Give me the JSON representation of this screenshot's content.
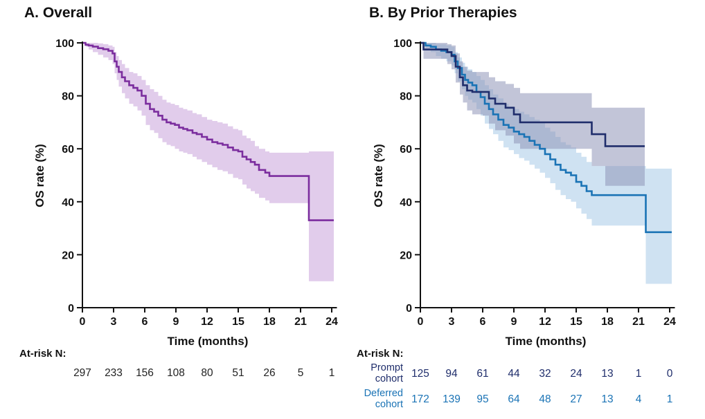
{
  "chart_data": [
    {
      "type": "line",
      "panel_title": "A. Overall",
      "xlabel": "Time (months)",
      "ylabel": "OS rate (%)",
      "xlim": [
        0,
        24.5
      ],
      "ylim": [
        0,
        100
      ],
      "xticks": [
        0,
        3,
        6,
        9,
        12,
        15,
        18,
        21,
        24
      ],
      "yticks": [
        0,
        20,
        40,
        60,
        80,
        100
      ],
      "series": [
        {
          "name": "Overall",
          "color": "#7b2d9e",
          "band_color": "#c9a3db",
          "x": [
            0,
            0.3,
            0.6,
            1.0,
            1.5,
            2.0,
            2.5,
            2.9,
            3.1,
            3.3,
            3.5,
            3.8,
            4.1,
            4.5,
            4.9,
            5.3,
            5.7,
            6.1,
            6.5,
            6.9,
            7.3,
            7.7,
            8.1,
            8.5,
            8.9,
            9.3,
            9.7,
            10.1,
            10.6,
            11.0,
            11.5,
            12.0,
            12.5,
            13.0,
            13.5,
            14.0,
            14.5,
            15.0,
            15.4,
            15.8,
            16.2,
            16.6,
            17.0,
            17.6,
            18.0,
            21.8,
            24.2
          ],
          "y": [
            100,
            99.3,
            99.0,
            98.6,
            98.0,
            97.6,
            97.0,
            96.0,
            93.0,
            91.0,
            89.0,
            87.0,
            85.5,
            84.0,
            83.0,
            82.0,
            80.0,
            77.0,
            75.0,
            74.0,
            72.5,
            71.0,
            70.0,
            69.5,
            69.0,
            68.0,
            67.5,
            67.0,
            66.0,
            65.5,
            64.5,
            63.5,
            62.5,
            62.0,
            61.5,
            60.5,
            59.5,
            59.0,
            57.0,
            56.0,
            55.0,
            54.0,
            52.0,
            51.0,
            49.7,
            33.0,
            33.0
          ],
          "lower": [
            100,
            98.5,
            97.5,
            96.5,
            95.5,
            94.5,
            93.5,
            92.0,
            88.5,
            86.0,
            83.5,
            81.0,
            79.0,
            77.0,
            76.0,
            74.5,
            72.5,
            69.0,
            67.0,
            66.0,
            64.0,
            62.5,
            61.5,
            61.0,
            60.0,
            59.0,
            58.5,
            58.0,
            57.0,
            56.0,
            55.0,
            54.0,
            53.0,
            52.0,
            51.5,
            50.5,
            49.0,
            48.5,
            46.5,
            45.0,
            44.0,
            43.0,
            41.5,
            40.5,
            39.5,
            10.0,
            10.0
          ],
          "upper": [
            100,
            100,
            100,
            100,
            99.8,
            99.5,
            99.0,
            98.5,
            96.5,
            95.0,
            93.5,
            92.0,
            90.5,
            89.0,
            88.5,
            87.5,
            86.0,
            84.0,
            82.5,
            81.5,
            80.0,
            78.5,
            77.5,
            77.0,
            76.5,
            75.5,
            75.0,
            74.5,
            73.5,
            73.0,
            72.0,
            71.0,
            70.5,
            70.0,
            69.5,
            68.5,
            67.5,
            67.0,
            65.0,
            64.0,
            63.0,
            61.0,
            60.0,
            59.0,
            58.5,
            59.0,
            59.0
          ]
        }
      ],
      "at_risk": {
        "label": "At-risk N:",
        "rows": [
          {
            "name": "",
            "color": "#222222",
            "values": [
              297,
              233,
              156,
              108,
              80,
              51,
              26,
              5,
              1
            ]
          }
        ]
      }
    },
    {
      "type": "line",
      "panel_title": "B. By Prior Therapies",
      "xlabel": "Time (months)",
      "ylabel": "OS rate (%)",
      "xlim": [
        0,
        24.5
      ],
      "ylim": [
        0,
        100
      ],
      "xticks": [
        0,
        3,
        6,
        9,
        12,
        15,
        18,
        21,
        24
      ],
      "yticks": [
        0,
        20,
        40,
        60,
        80,
        100
      ],
      "series": [
        {
          "name": "Deferred cohort",
          "color": "#1a73b5",
          "band_color": "#a7cbe8",
          "x": [
            0,
            0.5,
            1.0,
            1.5,
            2.0,
            2.5,
            3.0,
            3.3,
            3.6,
            4.0,
            4.3,
            4.6,
            5.0,
            5.4,
            5.8,
            6.2,
            6.6,
            7.0,
            7.5,
            8.0,
            8.5,
            9.0,
            9.5,
            10.0,
            10.5,
            11.0,
            11.5,
            12.0,
            12.5,
            13.0,
            13.5,
            14.0,
            14.5,
            15.0,
            15.5,
            16.0,
            16.5,
            17.0,
            21.7,
            24.2
          ],
          "y": [
            100,
            99.0,
            98.5,
            97.5,
            97.0,
            96.5,
            95.5,
            93.0,
            90.5,
            88.0,
            86.0,
            85.0,
            84.0,
            81.5,
            79.5,
            77.0,
            75.0,
            73.0,
            71.0,
            69.0,
            68.0,
            66.5,
            65.5,
            64.5,
            63.0,
            61.5,
            60.0,
            58.0,
            56.0,
            54.0,
            52.0,
            51.0,
            50.0,
            47.5,
            46.0,
            44.0,
            42.5,
            42.5,
            28.5,
            28.5
          ],
          "lower": [
            100,
            98.0,
            96.5,
            95.0,
            94.0,
            93.0,
            91.5,
            88.5,
            85.5,
            82.5,
            80.0,
            78.5,
            77.5,
            75.0,
            72.5,
            69.5,
            67.5,
            65.5,
            63.0,
            60.5,
            59.5,
            58.0,
            56.5,
            55.5,
            54.0,
            52.5,
            51.0,
            49.0,
            47.0,
            44.5,
            42.5,
            41.0,
            40.0,
            37.5,
            35.5,
            33.5,
            31.0,
            31.0,
            9.0,
            9.0
          ],
          "upper": [
            100,
            100,
            100,
            99.5,
            99.5,
            99.0,
            98.5,
            96.5,
            94.5,
            92.5,
            91.0,
            90.0,
            89.0,
            87.5,
            86.0,
            84.0,
            82.5,
            80.5,
            79.0,
            77.0,
            76.0,
            75.0,
            74.0,
            73.0,
            72.0,
            71.0,
            70.0,
            68.0,
            66.5,
            64.5,
            62.5,
            61.5,
            60.5,
            58.5,
            57.0,
            55.0,
            53.5,
            53.5,
            52.5,
            52.5
          ]
        },
        {
          "name": "Prompt cohort",
          "color": "#1f2d6b",
          "band_color": "#9096b8",
          "x": [
            0,
            0.3,
            2.0,
            2.6,
            3.0,
            3.4,
            3.8,
            4.1,
            4.5,
            5.0,
            6.0,
            6.6,
            7.2,
            8.2,
            9.0,
            9.6,
            16.5,
            17.8,
            21.6
          ],
          "y": [
            100,
            97.5,
            97.5,
            96.5,
            95.0,
            91.0,
            87.0,
            84.0,
            82.0,
            81.5,
            81.5,
            79.0,
            77.0,
            75.5,
            73.0,
            70.0,
            65.5,
            61.0,
            61.0
          ],
          "lower": [
            100,
            94.0,
            94.0,
            92.0,
            90.0,
            85.0,
            80.5,
            77.5,
            74.5,
            73.0,
            72.5,
            69.5,
            67.0,
            65.0,
            62.0,
            60.0,
            53.5,
            46.0,
            46.0
          ],
          "upper": [
            100,
            100,
            100,
            99.5,
            99.0,
            96.0,
            93.0,
            91.0,
            89.5,
            89.0,
            89.0,
            87.0,
            85.5,
            84.5,
            83.0,
            81.0,
            75.5,
            75.5,
            75.5
          ]
        }
      ],
      "at_risk": {
        "label": "At-risk N:",
        "rows": [
          {
            "name": "Prompt cohort",
            "name_lines": [
              "Prompt",
              "cohort"
            ],
            "color": "#1f2d6b",
            "values": [
              125,
              94,
              61,
              44,
              32,
              24,
              13,
              1,
              0
            ]
          },
          {
            "name": "Deferred cohort",
            "name_lines": [
              "Deferred",
              "cohort"
            ],
            "color": "#1a73b5",
            "values": [
              172,
              139,
              95,
              64,
              48,
              27,
              13,
              4,
              1
            ]
          }
        ]
      }
    }
  ]
}
